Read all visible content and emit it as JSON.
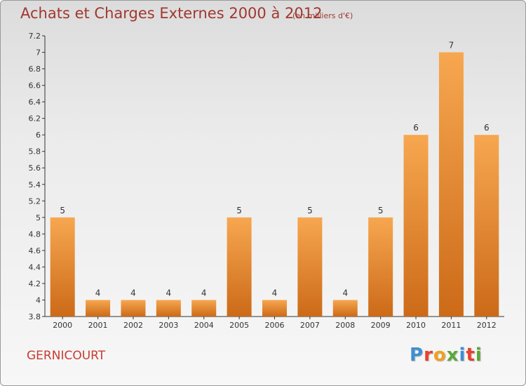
{
  "header": {
    "title": "Achats et Charges Externes 2000 à 2012",
    "unit": "(en milliers d'€)"
  },
  "footer": {
    "commune": "GERNICOURT",
    "brand": [
      "P",
      "r",
      "o",
      "x",
      "i",
      "t",
      "i"
    ]
  },
  "colors": {
    "title": "#a03830",
    "bar_light": "#f7a750",
    "bar_dark": "#cc6a18",
    "brand": [
      "#3f8fd2",
      "#e8402e",
      "#f0a020",
      "#5aa83a",
      "#3f8fd2",
      "#e8402e",
      "#5aa83a"
    ]
  },
  "chart_data": {
    "type": "bar",
    "categories": [
      "2000",
      "2001",
      "2002",
      "2003",
      "2004",
      "2005",
      "2006",
      "2007",
      "2008",
      "2009",
      "2010",
      "2011",
      "2012"
    ],
    "values": [
      5,
      4,
      4,
      4,
      4,
      5,
      4,
      5,
      4,
      5,
      6,
      7,
      6
    ],
    "data_labels": [
      "5",
      "4",
      "4",
      "4",
      "4",
      "5",
      "4",
      "5",
      "4",
      "5",
      "6",
      "7",
      "6"
    ],
    "ylim": [
      3.8,
      7.2
    ],
    "yticks": [
      3.8,
      4,
      4.2,
      4.4,
      4.6,
      4.8,
      5,
      5.2,
      5.4,
      5.6,
      5.8,
      6,
      6.2,
      6.4,
      6.6,
      6.8,
      7,
      7.2
    ],
    "ytick_labels": [
      "3.8",
      "4",
      "4.2",
      "4.4",
      "4.6",
      "4.8",
      "5",
      "5.2",
      "5.4",
      "5.6",
      "5.8",
      "6",
      "6.2",
      "6.4",
      "6.6",
      "6.8",
      "7",
      "7.2"
    ],
    "grid": false,
    "legend": "none"
  }
}
